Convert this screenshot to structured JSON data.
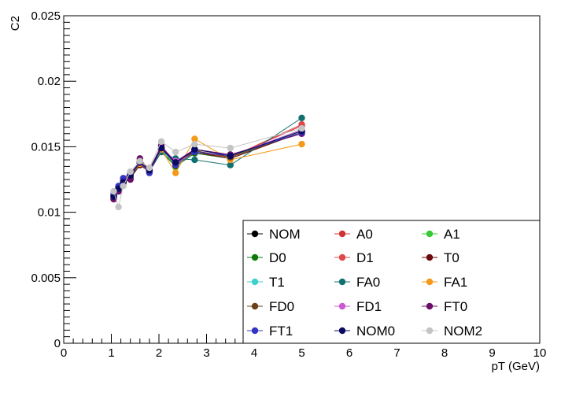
{
  "chart_data": {
    "type": "line",
    "xlabel": "pT (GeV)",
    "ylabel": "C2",
    "xlim": [
      0,
      10
    ],
    "ylim": [
      0,
      0.025
    ],
    "x_ticks": [
      "0",
      "1",
      "2",
      "3",
      "4",
      "5",
      "6",
      "7",
      "8",
      "9",
      "10"
    ],
    "y_ticks": [
      "0",
      "0.005",
      "0.01",
      "0.015",
      "0.02",
      "0.025"
    ],
    "grid": false,
    "legend_position": "bottom-right",
    "x": [
      1.05,
      1.15,
      1.25,
      1.4,
      1.6,
      1.8,
      2.05,
      2.35,
      2.75,
      3.5,
      5.0
    ],
    "series": [
      {
        "name": "NOM",
        "color": "#000000",
        "values": [
          0.0112,
          0.0118,
          0.0123,
          0.0128,
          0.0138,
          0.0132,
          0.015,
          0.0138,
          0.0148,
          0.0143,
          0.0162
        ]
      },
      {
        "name": "A0",
        "color": "#d03434",
        "values": [
          0.0113,
          0.0119,
          0.0124,
          0.0129,
          0.0139,
          0.0132,
          0.0149,
          0.0137,
          0.0147,
          0.0142,
          0.0166
        ]
      },
      {
        "name": "A1",
        "color": "#36c836",
        "values": [
          0.0112,
          0.0118,
          0.0124,
          0.0128,
          0.0137,
          0.0132,
          0.0147,
          0.0136,
          0.0146,
          0.0142,
          0.0163
        ]
      },
      {
        "name": "D0",
        "color": "#0e7a0e",
        "values": [
          0.0111,
          0.0117,
          0.0123,
          0.0127,
          0.0137,
          0.0131,
          0.0146,
          0.0135,
          0.0145,
          0.0141,
          0.0161
        ]
      },
      {
        "name": "D1",
        "color": "#e04848",
        "values": [
          0.0113,
          0.0119,
          0.0125,
          0.0129,
          0.0139,
          0.0133,
          0.015,
          0.0138,
          0.0146,
          0.0142,
          0.0167
        ]
      },
      {
        "name": "T0",
        "color": "#6a0a0a",
        "values": [
          0.011,
          0.0116,
          0.0122,
          0.0126,
          0.0136,
          0.0131,
          0.0149,
          0.0139,
          0.0146,
          0.0141,
          0.0161
        ]
      },
      {
        "name": "T1",
        "color": "#3ecfcf",
        "values": [
          0.0113,
          0.0118,
          0.0124,
          0.0128,
          0.0138,
          0.0132,
          0.0149,
          0.0138,
          0.0148,
          0.0143,
          0.0162
        ]
      },
      {
        "name": "FA0",
        "color": "#137070",
        "values": [
          0.0113,
          0.0118,
          0.0124,
          0.0128,
          0.0138,
          0.0132,
          0.0146,
          0.0141,
          0.014,
          0.0136,
          0.0172
        ]
      },
      {
        "name": "FA1",
        "color": "#f4991a",
        "values": [
          0.0113,
          0.0118,
          0.0124,
          0.0128,
          0.0137,
          0.0131,
          0.0148,
          0.013,
          0.0156,
          0.014,
          0.0152
        ]
      },
      {
        "name": "FD0",
        "color": "#6b4016",
        "values": [
          0.0112,
          0.0118,
          0.0123,
          0.0128,
          0.0138,
          0.0132,
          0.0149,
          0.0138,
          0.0147,
          0.0142,
          0.0161
        ]
      },
      {
        "name": "FD1",
        "color": "#c85ad2",
        "values": [
          0.0113,
          0.0118,
          0.0124,
          0.0128,
          0.0138,
          0.0132,
          0.015,
          0.0139,
          0.0148,
          0.0143,
          0.0163
        ]
      },
      {
        "name": "FT0",
        "color": "#6a0e6a",
        "values": [
          0.011,
          0.0116,
          0.0123,
          0.0125,
          0.0141,
          0.0132,
          0.0151,
          0.0137,
          0.0148,
          0.0144,
          0.016
        ]
      },
      {
        "name": "FT1",
        "color": "#3434c4",
        "values": [
          0.0114,
          0.012,
          0.0126,
          0.013,
          0.0138,
          0.013,
          0.0149,
          0.0136,
          0.0146,
          0.0143,
          0.0161
        ]
      },
      {
        "name": "NOM0",
        "color": "#0a0a62",
        "values": [
          0.0112,
          0.0118,
          0.0123,
          0.0128,
          0.0138,
          0.0132,
          0.0149,
          0.0138,
          0.0148,
          0.0143,
          0.0162
        ]
      },
      {
        "name": "NOM2",
        "color": "#c4c4c4",
        "values": [
          0.0116,
          0.0104,
          0.012,
          0.0131,
          0.0139,
          0.0134,
          0.0154,
          0.0146,
          0.0152,
          0.0149,
          0.0164
        ]
      }
    ]
  }
}
